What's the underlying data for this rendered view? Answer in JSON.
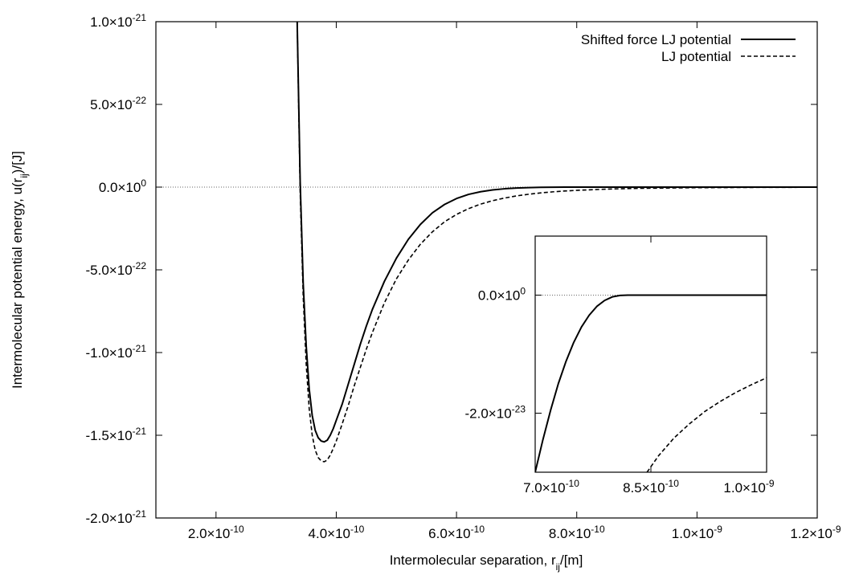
{
  "chart_data": [
    {
      "type": "line",
      "xlabel": "Intermolecular separation, r",
      "xlabel_sub": "ij",
      "xlabel_unit": "/[m]",
      "ylabel": "Intermolecular potential energy, u(r",
      "ylabel_sub": "ij",
      "ylabel_unit": ")/[J]",
      "xlim": [
        1e-10,
        1.2e-09
      ],
      "ylim": [
        -2e-21,
        1e-21
      ],
      "x_ticks": [
        {
          "value": 2e-10,
          "mantissa": "2.0×10",
          "exp": "-10"
        },
        {
          "value": 4e-10,
          "mantissa": "4.0×10",
          "exp": "-10"
        },
        {
          "value": 6e-10,
          "mantissa": "6.0×10",
          "exp": "-10"
        },
        {
          "value": 8e-10,
          "mantissa": "8.0×10",
          "exp": "-10"
        },
        {
          "value": 1e-09,
          "mantissa": "1.0×10",
          "exp": "-9"
        },
        {
          "value": 1.2e-09,
          "mantissa": "1.2×10",
          "exp": "-9"
        }
      ],
      "y_ticks": [
        {
          "value": 1e-21,
          "mantissa": "1.0×10",
          "exp": "-21"
        },
        {
          "value": 5e-22,
          "mantissa": "5.0×10",
          "exp": "-22"
        },
        {
          "value": 0,
          "mantissa": "0.0×10",
          "exp": "0"
        },
        {
          "value": -5e-22,
          "mantissa": "-5.0×10",
          "exp": "-22"
        },
        {
          "value": -1e-21,
          "mantissa": "-1.0×10",
          "exp": "-21"
        },
        {
          "value": -1.5e-21,
          "mantissa": "-1.5×10",
          "exp": "-21"
        },
        {
          "value": -2e-21,
          "mantissa": "-2.0×10",
          "exp": "-21"
        }
      ],
      "zero_line": true,
      "legend_position": "top-right",
      "series": [
        {
          "name": "Shifted force LJ potential",
          "style": "solid",
          "x": [
            3.35e-10,
            3.4e-10,
            3.45e-10,
            3.5e-10,
            3.55e-10,
            3.6e-10,
            3.65e-10,
            3.7e-10,
            3.75e-10,
            3.8e-10,
            3.85e-10,
            3.9e-10,
            3.95e-10,
            4e-10,
            4.1e-10,
            4.2e-10,
            4.3e-10,
            4.4e-10,
            4.5e-10,
            4.6e-10,
            4.8e-10,
            5e-10,
            5.2e-10,
            5.4e-10,
            5.6e-10,
            5.8e-10,
            6e-10,
            6.2e-10,
            6.4e-10,
            6.6e-10,
            6.8e-10,
            7e-10,
            7.2e-10,
            7.4e-10,
            7.6e-10,
            7.8e-10,
            8e-10,
            8.2e-10,
            8.5e-10,
            9e-10,
            1e-09,
            1.1e-09,
            1.2e-09
          ],
          "y": [
            1e-21,
            3e-23,
            -5.8e-22,
            -9.6e-22,
            -1.22e-21,
            -1.38e-21,
            -1.47e-21,
            -1.515e-21,
            -1.535e-21,
            -1.54e-21,
            -1.53e-21,
            -1.5e-21,
            -1.46e-21,
            -1.41e-21,
            -1.31e-21,
            -1.19e-21,
            -1.07e-21,
            -9.5e-22,
            -8.4e-22,
            -7.4e-22,
            -5.7e-22,
            -4.3e-22,
            -3.15e-22,
            -2.25e-22,
            -1.55e-22,
            -1.05e-22,
            -6.9e-23,
            -4.4e-23,
            -2.8e-23,
            -1.7e-23,
            -1e-23,
            -5.5e-24,
            -2.8e-24,
            -1.2e-24,
            -4.5e-25,
            -1.2e-25,
            -2e-26,
            0,
            0,
            0,
            0,
            0,
            0
          ]
        },
        {
          "name": "LJ potential",
          "style": "dashed",
          "x": [
            3.35e-10,
            3.4e-10,
            3.45e-10,
            3.5e-10,
            3.55e-10,
            3.6e-10,
            3.65e-10,
            3.7e-10,
            3.75e-10,
            3.8e-10,
            3.85e-10,
            3.9e-10,
            3.95e-10,
            4e-10,
            4.1e-10,
            4.2e-10,
            4.3e-10,
            4.4e-10,
            4.5e-10,
            4.6e-10,
            4.8e-10,
            5e-10,
            5.2e-10,
            5.4e-10,
            5.6e-10,
            5.8e-10,
            6e-10,
            6.2e-10,
            6.4e-10,
            6.6e-10,
            6.8e-10,
            7e-10,
            7.2e-10,
            7.4e-10,
            7.6e-10,
            7.8e-10,
            8e-10,
            8.5e-10,
            9e-10,
            1e-09,
            1.1e-09,
            1.2e-09
          ],
          "y": [
            1e-21,
            -3e-23,
            -6.6e-22,
            -1.07e-21,
            -1.34e-21,
            -1.5e-21,
            -1.59e-21,
            -1.635e-21,
            -1.655e-21,
            -1.66e-21,
            -1.65e-21,
            -1.62e-21,
            -1.58e-21,
            -1.535e-21,
            -1.43e-21,
            -1.32e-21,
            -1.2e-21,
            -1.09e-21,
            -9.8e-22,
            -8.8e-22,
            -7e-22,
            -5.55e-22,
            -4.4e-22,
            -3.45e-22,
            -2.7e-22,
            -2.1e-22,
            -1.65e-22,
            -1.3e-22,
            -1.03e-22,
            -8.2e-23,
            -6.6e-23,
            -5.3e-23,
            -4.3e-23,
            -3.5e-23,
            -2.85e-23,
            -2.35e-23,
            -1.95e-23,
            -1.2e-23,
            -7.5e-24,
            -3.5e-24,
            -1.8e-24,
            -1e-24
          ]
        }
      ]
    },
    {
      "type": "line",
      "inset": true,
      "xlim": [
        7e-10,
        1e-09
      ],
      "ylim": [
        -3e-23,
        1e-23
      ],
      "x_ticks": [
        {
          "value": 7e-10,
          "mantissa": "7.0×10",
          "exp": "-10"
        },
        {
          "value": 8.5e-10,
          "mantissa": "8.5×10",
          "exp": "-10"
        },
        {
          "value": 1e-09,
          "mantissa": "1.0×10",
          "exp": "-9"
        }
      ],
      "y_ticks": [
        {
          "value": 0,
          "mantissa": "0.0×10",
          "exp": "0"
        },
        {
          "value": -2e-23,
          "mantissa": "-2.0×10",
          "exp": "-23"
        }
      ],
      "zero_line": true,
      "series": [
        {
          "name": "Shifted force LJ potential",
          "style": "solid",
          "x": [
            7e-10,
            7.1e-10,
            7.2e-10,
            7.3e-10,
            7.4e-10,
            7.5e-10,
            7.6e-10,
            7.7e-10,
            7.8e-10,
            7.9e-10,
            8e-10,
            8.1e-10,
            8.2e-10,
            8.3e-10,
            8.4e-10,
            8.5e-10,
            9e-10,
            1e-09
          ],
          "y": [
            -3e-23,
            -2.45e-23,
            -1.95e-23,
            -1.5e-23,
            -1.12e-23,
            -8e-24,
            -5.4e-24,
            -3.4e-24,
            -1.9e-24,
            -9e-25,
            -3e-25,
            -5e-26,
            0,
            0,
            0,
            0,
            0,
            0
          ]
        },
        {
          "name": "LJ potential",
          "style": "dashed",
          "x": [
            8.45e-10,
            8.6e-10,
            8.8e-10,
            9e-10,
            9.2e-10,
            9.4e-10,
            9.6e-10,
            9.8e-10,
            1e-09
          ],
          "y": [
            -3e-23,
            -2.72e-23,
            -2.42e-23,
            -2.18e-23,
            -1.97e-23,
            -1.8e-23,
            -1.65e-23,
            -1.52e-23,
            -1.4e-23
          ]
        }
      ]
    }
  ]
}
